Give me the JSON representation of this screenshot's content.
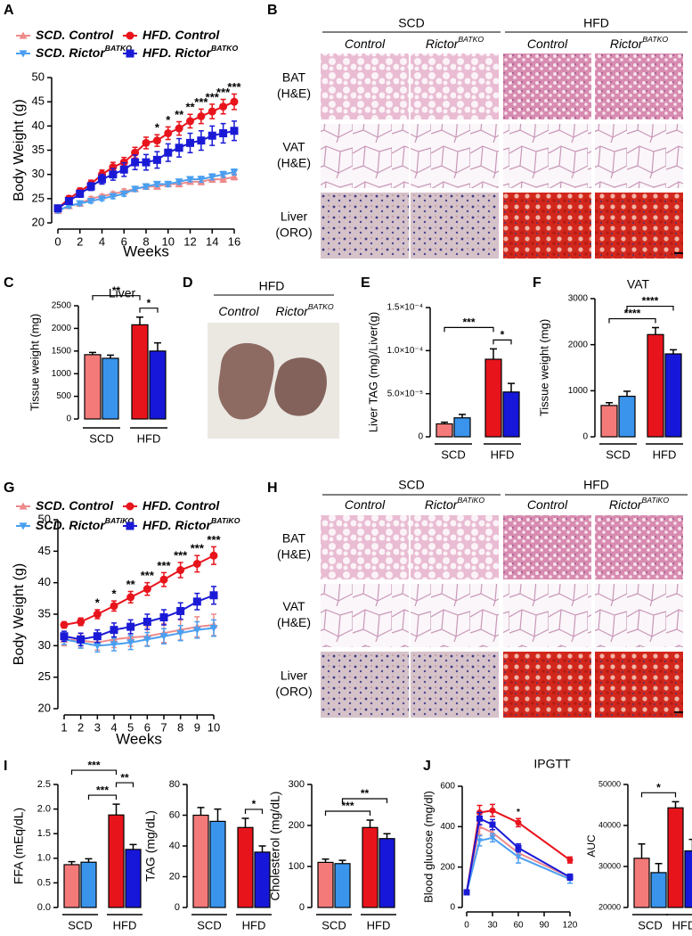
{
  "panels": {
    "letters": [
      "A",
      "B",
      "C",
      "D",
      "E",
      "F",
      "G",
      "H",
      "I",
      "J"
    ]
  },
  "histology": [
    {
      "diets": [
        "SCD",
        "HFD"
      ],
      "genotypes": [
        {
          "name": "Control"
        },
        {
          "name": "Rictor",
          "superscript": "BATKO"
        },
        {
          "name": "Control"
        },
        {
          "name": "Rictor",
          "superscript": "BATKO"
        }
      ],
      "rows": [
        [
          "BAT",
          "(H&E)"
        ],
        [
          "VAT",
          "(H&E)"
        ],
        [
          "Liver",
          "(ORO)"
        ]
      ]
    },
    {
      "diets": [
        "SCD",
        "HFD"
      ],
      "genotypes": [
        {
          "name": "Control"
        },
        {
          "name": "Rictor",
          "superscript": "BATiKO"
        },
        {
          "name": "Control"
        },
        {
          "name": "Rictor",
          "superscript": "BATiKO"
        }
      ],
      "rows": [
        [
          "BAT",
          "(H&E)"
        ],
        [
          "VAT",
          "(H&E)"
        ],
        [
          "Liver",
          "(ORO)"
        ]
      ]
    }
  ],
  "photo": {
    "title": "HFD",
    "genotypes": [
      {
        "name": "Control"
      },
      {
        "name": "Rictor",
        "superscript": "BATKO"
      }
    ]
  },
  "chart_data": [
    {
      "type": "line",
      "x_label": "Weeks",
      "y_label": "Body Weight (g)",
      "legend": "top",
      "x": [
        0,
        1,
        2,
        3,
        4,
        5,
        6,
        7,
        8,
        9,
        10,
        11,
        12,
        13,
        14,
        15,
        16
      ],
      "xlim": [
        0,
        16
      ],
      "xticks": [
        0,
        2,
        4,
        6,
        8,
        10,
        12,
        14,
        16
      ],
      "ylim": [
        20,
        50
      ],
      "yticks": [
        20,
        25,
        30,
        35,
        40,
        45,
        50
      ],
      "series": [
        {
          "name": "SCD. Control",
          "color": "#ef8a8a",
          "marker": "triangle-up",
          "values": [
            22.5,
            23.5,
            24,
            25,
            25.5,
            26,
            26.5,
            27,
            27.5,
            27.5,
            28,
            28,
            28.5,
            28.5,
            29,
            29,
            29.5
          ],
          "errors": [
            0.4,
            0.4,
            0.4,
            0.4,
            0.4,
            0.4,
            0.5,
            0.5,
            0.5,
            0.5,
            0.5,
            0.5,
            0.5,
            0.6,
            0.6,
            0.6,
            0.6
          ]
        },
        {
          "name": "SCD. Rictor",
          "name_superscript": "BATKO",
          "color": "#4a9ff0",
          "marker": "triangle-down",
          "values": [
            22.5,
            23.5,
            24,
            24.5,
            25,
            25.5,
            26,
            27,
            27.5,
            28,
            28,
            28.5,
            29,
            29,
            29.5,
            30,
            30.5
          ],
          "errors": [
            0.4,
            0.4,
            0.4,
            0.4,
            0.4,
            0.5,
            0.5,
            0.5,
            0.5,
            0.5,
            0.5,
            0.5,
            0.5,
            0.6,
            0.6,
            0.6,
            0.6
          ]
        },
        {
          "name": "HFD. Control",
          "color": "#e8141c",
          "marker": "circle",
          "values": [
            23,
            25,
            26.5,
            28,
            30,
            31.5,
            32.5,
            34.5,
            36.5,
            37,
            38.5,
            39.5,
            41,
            42,
            43,
            44,
            45
          ],
          "errors": [
            0.5,
            0.6,
            0.7,
            0.8,
            0.9,
            1,
            1,
            1.1,
            1.2,
            1.2,
            1.3,
            1.4,
            1.4,
            1.5,
            1.5,
            1.5,
            1.6
          ]
        },
        {
          "name": "HFD. Rictor",
          "name_superscript": "BATKO",
          "color": "#1a1ad6",
          "marker": "square",
          "values": [
            23,
            24.5,
            26,
            27.5,
            29,
            30,
            31,
            32.5,
            32.5,
            33,
            34.5,
            35.5,
            36.5,
            37,
            38,
            38.5,
            39
          ],
          "errors": [
            0.5,
            0.6,
            0.7,
            0.8,
            1,
            1.2,
            1.4,
            1.5,
            1.6,
            1.7,
            1.8,
            1.9,
            2,
            2,
            2,
            2,
            2
          ]
        }
      ],
      "annotations": [
        {
          "x": 9,
          "text": "*"
        },
        {
          "x": 10,
          "text": "*"
        },
        {
          "x": 11,
          "text": "**"
        },
        {
          "x": 12,
          "text": "**"
        },
        {
          "x": 13,
          "text": "***"
        },
        {
          "x": 14,
          "text": "***"
        },
        {
          "x": 15,
          "text": "***"
        },
        {
          "x": 16,
          "text": "***"
        }
      ]
    },
    {
      "type": "bar",
      "title": "Liver",
      "y_label": "Tissue weight (mg)",
      "groups": [
        "SCD",
        "HFD"
      ],
      "values": [
        1420,
        1340,
        2080,
        1500
      ],
      "errors": [
        50,
        70,
        170,
        180
      ],
      "colors": [
        "#f47a7a",
        "#3a94ec",
        "#e8141c",
        "#1717d9"
      ],
      "ylim": [
        0,
        2500
      ],
      "yticks": [
        0,
        500,
        1000,
        1500,
        2000,
        2500
      ],
      "brackets": [
        {
          "bars": [
            0,
            2
          ],
          "label": "**"
        },
        {
          "bars": [
            2,
            3
          ],
          "label": "*"
        }
      ]
    },
    {
      "type": "bar",
      "y_label": "Liver TAG (mg)/Liver(g)",
      "groups": [
        "SCD",
        "HFD"
      ],
      "values": [
        1.5e-05,
        2.2e-05,
        9e-05,
        5.2e-05
      ],
      "errors": [
        2e-06,
        4e-06,
        1.2e-05,
        1e-05
      ],
      "colors": [
        "#f47a7a",
        "#3a94ec",
        "#e8141c",
        "#1717d9"
      ],
      "ylim": [
        0,
        0.00015
      ],
      "yticks": [
        0,
        {
          "value": 5e-05,
          "label": "5.0×10⁻⁵"
        },
        {
          "value": 0.0001,
          "label": "1.0×10⁻⁴"
        },
        {
          "value": 0.00015,
          "label": "1.5×10⁻⁴"
        }
      ],
      "brackets": [
        {
          "bars": [
            0,
            2
          ],
          "label": "***"
        },
        {
          "bars": [
            2,
            3
          ],
          "label": "*"
        }
      ]
    },
    {
      "type": "bar",
      "title": "VAT",
      "y_label": "Tissue weight (mg)",
      "groups": [
        "SCD",
        "HFD"
      ],
      "values": [
        680,
        880,
        2220,
        1800
      ],
      "errors": [
        60,
        110,
        150,
        90
      ],
      "colors": [
        "#f47a7a",
        "#3a94ec",
        "#e8141c",
        "#1717d9"
      ],
      "ylim": [
        0,
        3000
      ],
      "yticks": [
        0,
        1000,
        2000,
        3000
      ],
      "brackets": [
        {
          "bars": [
            0,
            2
          ],
          "label": "****"
        },
        {
          "bars": [
            1,
            3
          ],
          "label": "****"
        }
      ]
    },
    {
      "type": "line",
      "x_label": "Weeks",
      "y_label": "Body Weight (g)",
      "legend": "top",
      "x": [
        1,
        2,
        3,
        4,
        5,
        6,
        7,
        8,
        9,
        10
      ],
      "xlim": [
        1,
        10
      ],
      "xticks": [
        1,
        2,
        3,
        4,
        5,
        6,
        7,
        8,
        9,
        10
      ],
      "ylim": [
        20,
        50
      ],
      "yticks": [
        20,
        25,
        30,
        35,
        40,
        45,
        50
      ],
      "series": [
        {
          "name": "SCD. Control",
          "color": "#ef8a8a",
          "marker": "triangle-up",
          "values": [
            31,
            30.8,
            30.5,
            31,
            31.3,
            31.5,
            32,
            32.5,
            33,
            33.3
          ],
          "errors": [
            1,
            1.1,
            1.2,
            1.3,
            1.4,
            1.5,
            1.5,
            1.6,
            1.6,
            1.7
          ]
        },
        {
          "name": "SCD. Rictor",
          "name_superscript": "BATiKO",
          "color": "#4a9ff0",
          "marker": "triangle-down",
          "values": [
            31,
            30.5,
            30,
            30.2,
            30.5,
            31,
            31.5,
            32,
            32.5,
            32.8
          ],
          "errors": [
            0.8,
            0.9,
            1,
            1,
            1.1,
            1.1,
            1.2,
            1.2,
            1.3,
            1.3
          ]
        },
        {
          "name": "HFD. Control",
          "color": "#e8141c",
          "marker": "circle",
          "values": [
            33.3,
            33.8,
            35,
            36.3,
            37.7,
            39,
            40.5,
            42,
            43,
            44.3
          ],
          "errors": [
            0.5,
            0.6,
            0.7,
            0.8,
            0.9,
            1,
            1.1,
            1.2,
            1.3,
            1.4
          ]
        },
        {
          "name": "HFD. Rictor",
          "name_superscript": "BATiKO",
          "color": "#1a1ad6",
          "marker": "square",
          "values": [
            31.5,
            31,
            31.5,
            32.5,
            33,
            33.8,
            34.5,
            35.5,
            37,
            38
          ],
          "errors": [
            0.8,
            1,
            1,
            1.1,
            1.1,
            1.2,
            1.2,
            1.3,
            1.3,
            1.4
          ]
        }
      ],
      "annotations": [
        {
          "x": 3,
          "text": "*"
        },
        {
          "x": 4,
          "text": "*"
        },
        {
          "x": 5,
          "text": "**"
        },
        {
          "x": 6,
          "text": "***"
        },
        {
          "x": 7,
          "text": "***"
        },
        {
          "x": 8,
          "text": "***"
        },
        {
          "x": 9,
          "text": "***"
        },
        {
          "x": 10,
          "text": "***"
        }
      ]
    },
    {
      "type": "bar",
      "y_label": "FFA (mEq/dL)",
      "groups": [
        "SCD",
        "HFD"
      ],
      "values": [
        0.87,
        0.92,
        1.88,
        1.18
      ],
      "errors": [
        0.06,
        0.07,
        0.22,
        0.1
      ],
      "colors": [
        "#f47a7a",
        "#3a94ec",
        "#e8141c",
        "#1717d9"
      ],
      "ylim": [
        0,
        2.5
      ],
      "yticks": [
        {
          "value": 0,
          "label": "0.0"
        },
        0.5,
        {
          "value": 1,
          "label": "1.0"
        },
        1.5,
        {
          "value": 2,
          "label": "2.0"
        },
        2.5
      ],
      "brackets": [
        {
          "bars": [
            0,
            2
          ],
          "label": "***"
        },
        {
          "bars": [
            1,
            2
          ],
          "label": "***"
        },
        {
          "bars": [
            2,
            3
          ],
          "label": "**"
        }
      ]
    },
    {
      "type": "bar",
      "y_label": "TAG (mg/dL)",
      "groups": [
        "SCD",
        "HFD"
      ],
      "values": [
        60,
        56,
        52,
        36
      ],
      "errors": [
        5,
        8,
        6,
        4
      ],
      "colors": [
        "#f47a7a",
        "#3a94ec",
        "#e8141c",
        "#1717d9"
      ],
      "ylim": [
        0,
        80
      ],
      "yticks": [
        0,
        20,
        40,
        60,
        80
      ],
      "brackets": [
        {
          "bars": [
            2,
            3
          ],
          "label": "*"
        }
      ]
    },
    {
      "type": "bar",
      "y_label": "Cholesterol (mg/dL)",
      "groups": [
        "SCD",
        "HFD"
      ],
      "values": [
        110,
        107,
        195,
        168
      ],
      "errors": [
        8,
        8,
        18,
        12
      ],
      "colors": [
        "#f47a7a",
        "#3a94ec",
        "#e8141c",
        "#1717d9"
      ],
      "ylim": [
        0,
        300
      ],
      "yticks": [
        0,
        100,
        200,
        300
      ],
      "brackets": [
        {
          "bars": [
            0,
            2
          ],
          "label": "***"
        },
        {
          "bars": [
            1,
            3
          ],
          "label": "**"
        }
      ]
    },
    {
      "type": "line",
      "title": "IPGTT",
      "y_label": "Blood glucose (mg/dl)",
      "x": [
        0,
        15,
        30,
        60,
        120
      ],
      "xlim": [
        0,
        120
      ],
      "xticks": [
        0,
        30,
        60,
        90,
        120
      ],
      "ylim": [
        0,
        600
      ],
      "yticks": [
        0,
        200,
        400,
        600
      ],
      "series": [
        {
          "color": "#ef8a8a",
          "marker": "triangle-up",
          "values": [
            75,
            400,
            370,
            270,
            150
          ],
          "errors": [
            8,
            40,
            30,
            25,
            15
          ]
        },
        {
          "color": "#4a9ff0",
          "marker": "triangle-down",
          "values": [
            75,
            330,
            345,
            250,
            140
          ],
          "errors": [
            8,
            25,
            20,
            30,
            20
          ]
        },
        {
          "color": "#e8141c",
          "marker": "circle",
          "values": [
            75,
            470,
            480,
            420,
            235
          ],
          "errors": [
            8,
            35,
            30,
            20,
            15
          ]
        },
        {
          "color": "#1a1ad6",
          "marker": "square",
          "values": [
            75,
            440,
            410,
            295,
            150
          ],
          "errors": [
            8,
            30,
            25,
            20,
            15
          ]
        }
      ],
      "annotations": [
        {
          "x": 60,
          "text": "*"
        }
      ]
    },
    {
      "type": "bar",
      "y_label": "AUC",
      "groups": [
        "SCD",
        "HFD"
      ],
      "values": [
        32000,
        28500,
        44300,
        33800
      ],
      "errors": [
        3500,
        2200,
        1500,
        2800
      ],
      "colors": [
        "#f47a7a",
        "#3a94ec",
        "#e8141c",
        "#1717d9"
      ],
      "ylim": [
        20000,
        50000
      ],
      "yticks": [
        20000,
        30000,
        40000,
        50000
      ],
      "brackets": [
        {
          "bars": [
            0,
            2
          ],
          "label": "*"
        }
      ]
    }
  ]
}
